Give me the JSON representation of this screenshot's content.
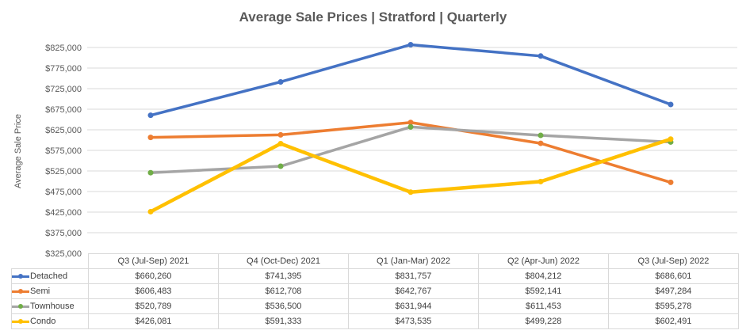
{
  "chart_data": {
    "type": "line",
    "title": "Average Sale Prices | Stratford |  Quarterly",
    "ylabel": "Average Sale Price",
    "xlabel": "",
    "ylim": [
      325000,
      825000
    ],
    "yticks": [
      "$325,000",
      "$375,000",
      "$425,000",
      "$475,000",
      "$525,000",
      "$575,000",
      "$625,000",
      "$675,000",
      "$725,000",
      "$775,000",
      "$825,000"
    ],
    "grid": true,
    "legend": "data-table",
    "categories": [
      "Q3 (Jul-Sep) 2021",
      "Q4 (Oct-Dec) 2021",
      "Q1 (Jan-Mar) 2022",
      "Q2 (Apr-Jun) 2022",
      "Q3 (Jul-Sep) 2022"
    ],
    "series": [
      {
        "name": "Detached",
        "values": [
          660260,
          741395,
          831757,
          804212,
          686601
        ],
        "labels": [
          "$660,260",
          "$741,395",
          "$831,757",
          "$804,212",
          "$686,601"
        ],
        "color": "#4472C4",
        "marker": "#4472C4"
      },
      {
        "name": "Semi",
        "values": [
          606483,
          612708,
          642767,
          592141,
          497284
        ],
        "labels": [
          "$606,483",
          "$612,708",
          "$642,767",
          "$592,141",
          "$497,284"
        ],
        "color": "#ED7D31",
        "marker": "#ED7D31"
      },
      {
        "name": "Townhouse",
        "values": [
          520789,
          536500,
          631944,
          611453,
          595278
        ],
        "labels": [
          "$520,789",
          "$536,500",
          "$631,944",
          "$611,453",
          "$595,278"
        ],
        "color": "#A5A5A5",
        "marker": "#70AD47"
      },
      {
        "name": "Condo",
        "values": [
          426081,
          591333,
          473535,
          499228,
          602491
        ],
        "labels": [
          "$426,081",
          "$591,333",
          "$473,535",
          "$499,228",
          "$602,491"
        ],
        "color": "#FFC000",
        "marker": "#FFC000"
      }
    ]
  }
}
